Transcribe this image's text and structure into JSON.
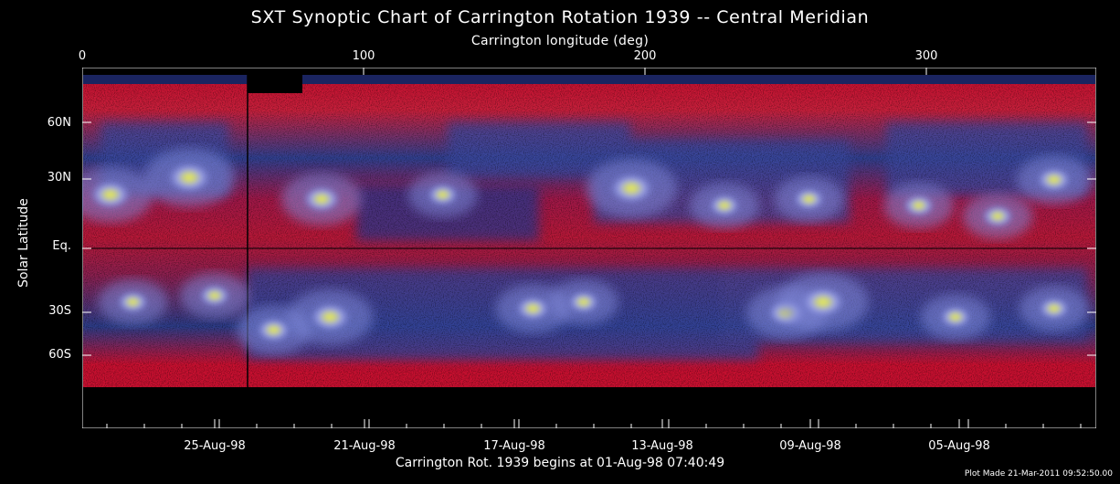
{
  "title": "SXT Synoptic Chart of Carrington Rotation 1939 -- Central Meridian",
  "top_axis": {
    "label": "Carrington longitude (deg)",
    "ticks": [
      "0",
      "100",
      "200",
      "300"
    ]
  },
  "left_axis": {
    "label": "Solar Latitude",
    "ticks": [
      "60N",
      "30N",
      "Eq.",
      "30S",
      "60S"
    ]
  },
  "bottom_axis": {
    "label": "Carrington Rot. 1939 begins at 01-Aug-98 07:40:49",
    "dates": [
      "25-Aug-98",
      "21-Aug-98",
      "17-Aug-98",
      "13-Aug-98",
      "09-Aug-98",
      "05-Aug-98"
    ]
  },
  "plot_made": "Plot Made 21-Mar-2011 09:52:50.00",
  "colors": {
    "background": "#000000",
    "quiet_sun": "#2a3a8a",
    "coronal_hole": "#d01030",
    "active_region": "#8a90e0",
    "bright_core": "#f0f060"
  },
  "chart_data": {
    "type": "heatmap",
    "title": "SXT Synoptic Chart of Carrington Rotation 1939 -- Central Meridian",
    "xlabel": "Carrington longitude (deg)",
    "ylabel": "Solar Latitude",
    "xlim": [
      0,
      360
    ],
    "ylim": [
      -90,
      90
    ],
    "x_ticks": [
      0,
      100,
      200,
      300
    ],
    "y_ticks": [
      60,
      30,
      0,
      -30,
      -60
    ],
    "active_regions": [
      {
        "lon": 10,
        "lat": 25,
        "intensity": 0.9
      },
      {
        "lon": 38,
        "lat": 33,
        "intensity": 1.0
      },
      {
        "lon": 85,
        "lat": 23,
        "intensity": 0.8
      },
      {
        "lon": 128,
        "lat": 25,
        "intensity": 0.6
      },
      {
        "lon": 195,
        "lat": 28,
        "intensity": 1.0
      },
      {
        "lon": 228,
        "lat": 20,
        "intensity": 0.6
      },
      {
        "lon": 258,
        "lat": 23,
        "intensity": 0.6
      },
      {
        "lon": 297,
        "lat": 20,
        "intensity": 0.6
      },
      {
        "lon": 325,
        "lat": 15,
        "intensity": 0.6
      },
      {
        "lon": 345,
        "lat": 32,
        "intensity": 0.7
      },
      {
        "lon": 18,
        "lat": -25,
        "intensity": 0.6
      },
      {
        "lon": 47,
        "lat": -22,
        "intensity": 0.6
      },
      {
        "lon": 68,
        "lat": -38,
        "intensity": 0.7
      },
      {
        "lon": 88,
        "lat": -32,
        "intensity": 0.9
      },
      {
        "lon": 160,
        "lat": -28,
        "intensity": 0.7
      },
      {
        "lon": 178,
        "lat": -25,
        "intensity": 0.6
      },
      {
        "lon": 250,
        "lat": -30,
        "intensity": 0.8
      },
      {
        "lon": 263,
        "lat": -25,
        "intensity": 1.0
      },
      {
        "lon": 310,
        "lat": -32,
        "intensity": 0.6
      },
      {
        "lon": 345,
        "lat": -28,
        "intensity": 0.6
      }
    ]
  }
}
